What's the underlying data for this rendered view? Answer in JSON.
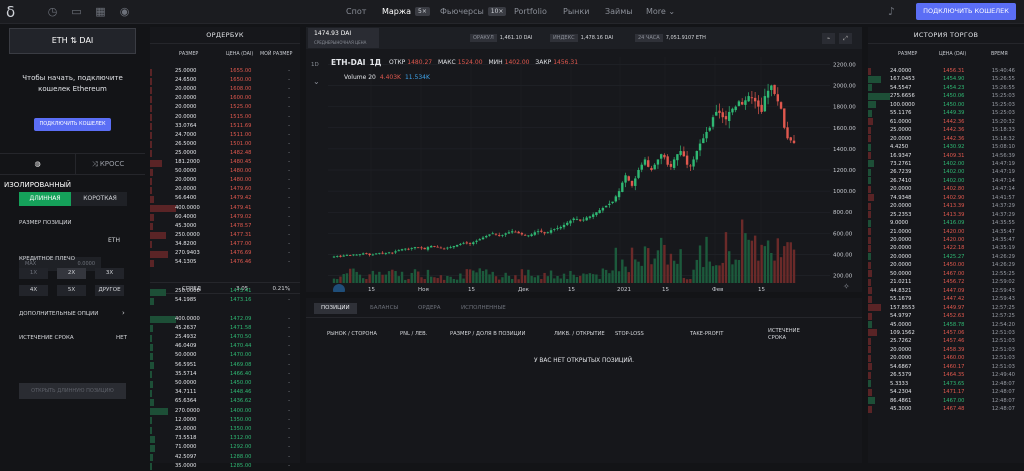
{
  "topbar": {
    "logo": "δ",
    "nav": [
      {
        "label": "Спот",
        "active": false
      },
      {
        "label": "Маржа",
        "badge": "5×",
        "active": true
      },
      {
        "label": "Фьючерсы",
        "badge": "10×",
        "active": false
      },
      {
        "label": "Portfolio",
        "active": false
      },
      {
        "label": "Рынки",
        "active": false
      },
      {
        "label": "Займы",
        "active": false
      },
      {
        "label": "More ⌄",
        "active": false
      }
    ],
    "connect_label": "ПОДКЛЮЧИТЬ КОШЕЛЕК",
    "icons": [
      "history-icon",
      "terminal-icon",
      "grid-icon",
      "gamepad-icon",
      "bell-icon"
    ]
  },
  "left": {
    "pair": "ETH  ⇅  DAI",
    "message": "Чтобы начать, подключите кошелек Ethereum",
    "connect_label": "ПОДКЛЮЧИТЬ КОШЕЛЕК",
    "isolated_label": "ИЗОЛИРОВАННЫЙ",
    "cross_label": "КРОСС",
    "long_label": "ДЛИННАЯ",
    "short_label": "КОРОТКАЯ",
    "size_label": "РАЗМЕР ПОЗИЦИИ",
    "size_max": "MAX",
    "size_value": "0.0000",
    "size_unit": "ETH",
    "leverage_label": "КРЕДИТНОЕ ПЛЕЧО",
    "leverage": [
      "1X",
      "2X",
      "3X",
      "4X",
      "5X",
      "ДРУГОЕ"
    ],
    "options_label": "ДОПОЛНИТЕЛЬНЫЕ ОПЦИИ",
    "expiry_label": "ИСТЕЧЕНИЕ СРОКА",
    "expiry_value": "НЕТ",
    "open_label": "ОТКРЫТЬ ДЛИННУЮ ПОЗИЦИЮ"
  },
  "orderbook": {
    "title": "ОРДЕРБУК",
    "headers": [
      "РАЗМЕР",
      "ЦЕНА (DAI)",
      "МОЙ РАЗМЕР"
    ],
    "asks": [
      [
        "25.0000",
        "1655.00",
        "-"
      ],
      [
        "24.6500",
        "1650.00",
        "-"
      ],
      [
        "20.0000",
        "1608.00",
        "-"
      ],
      [
        "20.0000",
        "1600.00",
        "-"
      ],
      [
        "20.0000",
        "1525.00",
        "-"
      ],
      [
        "20.0000",
        "1515.00",
        "-"
      ],
      [
        "33.0764",
        "1511.69",
        "-"
      ],
      [
        "24.7000",
        "1511.00",
        "-"
      ],
      [
        "26.5000",
        "1501.00",
        "-"
      ],
      [
        "25.0000",
        "1482.48",
        "-"
      ],
      [
        "181.2000",
        "1480.45",
        "-"
      ],
      [
        "50.0000",
        "1480.00",
        "-"
      ],
      [
        "20.0000",
        "1480.00",
        "-"
      ],
      [
        "20.0000",
        "1479.60",
        "-"
      ],
      [
        "56.6400",
        "1479.42",
        "-"
      ],
      [
        "400.0000",
        "1479.41",
        "-"
      ],
      [
        "60.4000",
        "1479.02",
        "-"
      ],
      [
        "45.3000",
        "1478.57",
        "-"
      ],
      [
        "250.0000",
        "1477.31",
        "-"
      ],
      [
        "34.8200",
        "1477.00",
        "-"
      ],
      [
        "270.9403",
        "1476.69",
        "-"
      ],
      [
        "54.1305",
        "1476.46",
        "-"
      ]
    ],
    "spread_label": "СПРЕД",
    "spread_value": "3.05",
    "spread_pct": "0.21%",
    "bids": [
      [
        "250.0000",
        "1473.41",
        "-"
      ],
      [
        "54.1985",
        "1473.16",
        "-"
      ],
      [
        "",
        "",
        ""
      ],
      [
        "400.0000",
        "1472.09",
        "-"
      ],
      [
        "45.2637",
        "1471.58",
        "-"
      ],
      [
        "25.4932",
        "1470.50",
        "-"
      ],
      [
        "46.0409",
        "1470.44",
        "-"
      ],
      [
        "50.0000",
        "1470.00",
        "-"
      ],
      [
        "56.5951",
        "1469.08",
        "-"
      ],
      [
        "35.5714",
        "1466.40",
        "-"
      ],
      [
        "50.0000",
        "1450.00",
        "-"
      ],
      [
        "34.7111",
        "1448.46",
        "-"
      ],
      [
        "65.6364",
        "1436.62",
        "-"
      ],
      [
        "270.0000",
        "1400.00",
        "-"
      ],
      [
        "12.0000",
        "1350.00",
        "-"
      ],
      [
        "25.0000",
        "1350.00",
        "-"
      ],
      [
        "73.5518",
        "1312.00",
        "-"
      ],
      [
        "71.0000",
        "1292.00",
        "-"
      ],
      [
        "42.5097",
        "1288.00",
        "-"
      ],
      [
        "35.0000",
        "1285.00",
        "-"
      ]
    ]
  },
  "chart_header": {
    "price": "1474.93 DAI",
    "price_sub": "СРЕДНЕРЫНОЧНАЯ ЦЕНА",
    "oracle_k": "ОРАКУЛ",
    "oracle_v": "1,461.10 DAI",
    "index_k": "ИНДЕКС",
    "index_v": "1,478.16 DAI",
    "h24_k": "24 ЧАСА",
    "h24_v": "7,051.9107 ETH"
  },
  "chart_data": {
    "type": "candlestick",
    "symbol": "ETH-DAI",
    "interval": "1Д",
    "interval_menu": "1D",
    "ohlc_labels": {
      "open_k": "ОТКР",
      "open": "1480.27",
      "high_k": "МАКС",
      "high": "1524.00",
      "low_k": "МИН",
      "low": "1402.00",
      "close_k": "ЗАКР",
      "close": "1456.31"
    },
    "volume_label": "Volume 20",
    "volume_values": [
      "4.403K",
      "11.534K"
    ],
    "y_ticks": [
      2200,
      2000,
      1800,
      1600,
      1400,
      1200,
      1000,
      800,
      600,
      400,
      200
    ],
    "ylim": [
      130,
      2270
    ],
    "x_ticks": [
      "15",
      "Ноя",
      "15",
      "Дек",
      "15",
      "2021",
      "15",
      "Фев",
      "15"
    ],
    "close_path": [
      380,
      385,
      378,
      390,
      395,
      388,
      400,
      398,
      402,
      410,
      405,
      395,
      400,
      410,
      415,
      408,
      412,
      420,
      415,
      430,
      440,
      450,
      455,
      448,
      460,
      470,
      465,
      460,
      450,
      470,
      480,
      475,
      470,
      460,
      455,
      465,
      470,
      480,
      490,
      500,
      510,
      505,
      500,
      515,
      530,
      545,
      560,
      575,
      590,
      600,
      590,
      580,
      585,
      600,
      610,
      620,
      615,
      600,
      590,
      585,
      580,
      590,
      610,
      620,
      615,
      600,
      610,
      630,
      640,
      650,
      660,
      680,
      700,
      720,
      740,
      735,
      720,
      730,
      750,
      760,
      780,
      800,
      820,
      840,
      860,
      880,
      900,
      950,
      1000,
      1080,
      1150,
      1100,
      1050,
      1120,
      1200,
      1250,
      1300,
      1230,
      1200,
      1250,
      1300,
      1350,
      1320,
      1250,
      1230,
      1300,
      1350,
      1380,
      1330,
      1250,
      1240,
      1300,
      1380,
      1450,
      1500,
      1560,
      1600,
      1700,
      1750,
      1740,
      1700,
      1680,
      1750,
      1780,
      1800,
      1850,
      1820,
      1860,
      1900,
      1880,
      1850,
      1800,
      1750,
      1900,
      1950,
      2000,
      1920,
      1850,
      1780,
      1600,
      1500,
      1480,
      1456
    ]
  },
  "positions": {
    "tabs": [
      "ПОЗИЦИИ",
      "БАЛАНСЫ",
      "ОРДЕРА",
      "ИСПОЛНЕННЫЕ"
    ],
    "columns": [
      "РЫНОК / СТОРОНА",
      "PNL / ЛЕВ.",
      "РАЗМЕР / ДОЛЯ В ПОЗИЦИИ",
      "ЛИКВ. / ОТКРЫТИЕ",
      "STOP-LOSS",
      "TAKE-PROFIT",
      "ИСТЕЧЕНИЕ СРОКА"
    ],
    "empty": "У ВАС НЕТ ОТКРЫТЫХ ПОЗИЦИЙ."
  },
  "history": {
    "title": "ИСТОРИЯ ТОРГОВ",
    "headers": [
      "РАЗМЕР",
      "ЦЕНА (DAI)",
      "ВРЕМЯ"
    ],
    "rows": [
      [
        "24.0000",
        "1456.31",
        "15:40:46",
        "r"
      ],
      [
        "167.0453",
        "1454.90",
        "15:26:55",
        "g"
      ],
      [
        "54.5547",
        "1454.23",
        "15:26:55",
        "g"
      ],
      [
        "275.6656",
        "1450.06",
        "15:25:03",
        "g"
      ],
      [
        "100.0000",
        "1450.00",
        "15:25:03",
        "g"
      ],
      [
        "55.1176",
        "1449.39",
        "15:25:03",
        "g"
      ],
      [
        "61.0000",
        "1442.36",
        "15:20:32",
        "r"
      ],
      [
        "25.0000",
        "1442.36",
        "15:18:33",
        "r"
      ],
      [
        "20.0000",
        "1442.36",
        "15:18:32",
        "r"
      ],
      [
        "4.4250",
        "1430.92",
        "15:08:10",
        "g"
      ],
      [
        "16.9347",
        "1409.31",
        "14:56:39",
        "r"
      ],
      [
        "73.2761",
        "1402.00",
        "14:47:19",
        "g"
      ],
      [
        "26.7239",
        "1402.00",
        "14:47:19",
        "g"
      ],
      [
        "26.7410",
        "1402.00",
        "14:47:14",
        "g"
      ],
      [
        "20.0000",
        "1402.80",
        "14:47:14",
        "r"
      ],
      [
        "74.9348",
        "1402.90",
        "14:41:57",
        "r"
      ],
      [
        "20.0000",
        "1413.39",
        "14:37:29",
        "r"
      ],
      [
        "25.2353",
        "1413.39",
        "14:37:29",
        "r"
      ],
      [
        "9.0000",
        "1416.09",
        "14:35:55",
        "g"
      ],
      [
        "21.0000",
        "1420.00",
        "14:35:47",
        "r"
      ],
      [
        "20.0000",
        "1420.00",
        "14:35:47",
        "r"
      ],
      [
        "20.0000",
        "1422.18",
        "14:35:19",
        "r"
      ],
      [
        "20.0000",
        "1425.27",
        "14:26:29",
        "g"
      ],
      [
        "20.0000",
        "1450.00",
        "14:26:29",
        "r"
      ],
      [
        "50.0000",
        "1467.00",
        "12:55:25",
        "r"
      ],
      [
        "21.0211",
        "1456.72",
        "12:59:02",
        "r"
      ],
      [
        "44.8321",
        "1447.09",
        "12:59:43",
        "r"
      ],
      [
        "55.1679",
        "1447.42",
        "12:59:43",
        "r"
      ],
      [
        "157.8553",
        "1449.97",
        "12:57:25",
        "r"
      ],
      [
        "54.9797",
        "1452.63",
        "12:57:25",
        "r"
      ],
      [
        "45.0000",
        "1458.78",
        "12:54:20",
        "g"
      ],
      [
        "109.1562",
        "1457.06",
        "12:51:03",
        "r"
      ],
      [
        "25.7262",
        "1457.46",
        "12:51:03",
        "r"
      ],
      [
        "20.0000",
        "1458.39",
        "12:51:03",
        "r"
      ],
      [
        "20.0000",
        "1460.00",
        "12:51:03",
        "r"
      ],
      [
        "54.6867",
        "1460.17",
        "12:51:03",
        "r"
      ],
      [
        "26.5379",
        "1464.35",
        "12:49:40",
        "r"
      ],
      [
        "5.3333",
        "1473.65",
        "12:48:07",
        "g"
      ],
      [
        "54.2304",
        "1471.17",
        "12:48:07",
        "r"
      ],
      [
        "86.4861",
        "1467.00",
        "12:48:07",
        "g"
      ],
      [
        "45.3000",
        "1467.48",
        "12:48:07",
        "r"
      ]
    ]
  },
  "colors": {
    "up": "#2fb873",
    "down": "#e0584e",
    "accent": "#5b6ef5"
  }
}
